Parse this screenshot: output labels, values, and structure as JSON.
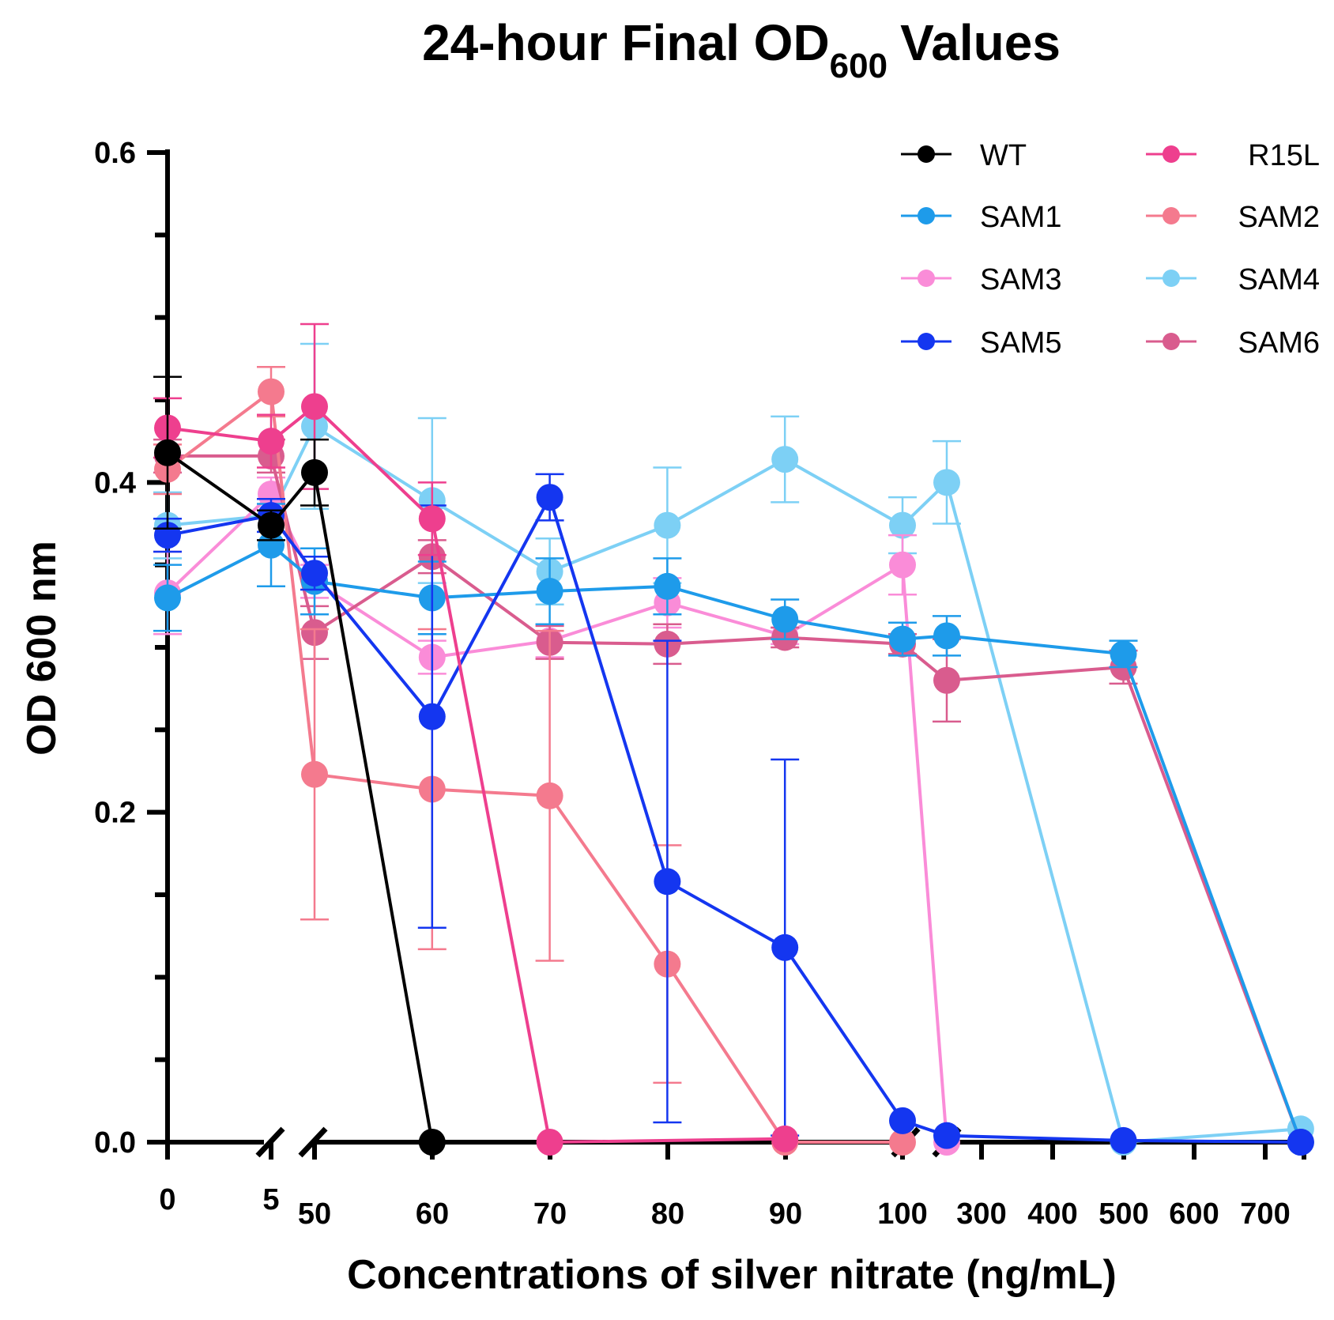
{
  "chart_data": {
    "type": "line",
    "title": "24-hour Final OD",
    "title_subscript": "600",
    "title_suffix": "Values",
    "xlabel": "Concentrations of silver nitrate (ng/mL)",
    "ylabel": "OD 600 nm",
    "ylim": [
      0,
      0.6
    ],
    "y_major_ticks": [
      "0.0",
      "0.2",
      "0.4",
      "0.6"
    ],
    "x_axis_segments": [
      {
        "name": "segment-1",
        "range": [
          0,
          5
        ],
        "ticks": [
          "0",
          "5"
        ]
      },
      {
        "name": "segment-2",
        "range": [
          50,
          100
        ],
        "ticks": [
          "50",
          "60",
          "70",
          "80",
          "90",
          "100"
        ]
      },
      {
        "name": "segment-3",
        "range": [
          200,
          800
        ],
        "ticks": [
          "300",
          "400",
          "500",
          "600",
          "700"
        ]
      }
    ],
    "legend_position": "top-right",
    "series": [
      {
        "name": "WT",
        "color": "#000000",
        "points": [
          {
            "x": 0,
            "y": 0.418,
            "err": 0.046
          },
          {
            "x": 5,
            "y": 0.374,
            "err": 0.009
          },
          {
            "x": 50,
            "y": 0.406,
            "err": 0.02
          },
          {
            "x": 60,
            "y": 0.0
          }
        ]
      },
      {
        "name": "R15L",
        "color": "#EE3F8E",
        "points": [
          {
            "x": 0,
            "y": 0.433,
            "err": 0.018
          },
          {
            "x": 5,
            "y": 0.425,
            "err": 0.016
          },
          {
            "x": 50,
            "y": 0.446,
            "err": 0.05
          },
          {
            "x": 60,
            "y": 0.378,
            "err": 0.022
          },
          {
            "x": 70,
            "y": 0.0
          },
          {
            "x": 90,
            "y": 0.002
          }
        ]
      },
      {
        "name": "SAM1",
        "color": "#1E9BEA",
        "points": [
          {
            "x": 0,
            "y": 0.33,
            "err": 0.02
          },
          {
            "x": 5,
            "y": 0.362,
            "err": 0.025
          },
          {
            "x": 50,
            "y": 0.34,
            "err": 0.02
          },
          {
            "x": 60,
            "y": 0.33,
            "err": 0.022
          },
          {
            "x": 70,
            "y": 0.334,
            "err": 0.02
          },
          {
            "x": 80,
            "y": 0.337,
            "err": 0.017
          },
          {
            "x": 90,
            "y": 0.317,
            "err": 0.012
          },
          {
            "x": 100,
            "y": 0.305,
            "err": 0.01
          },
          {
            "x": 250,
            "y": 0.307,
            "err": 0.012
          },
          {
            "x": 500,
            "y": 0.296,
            "err": 0.008
          },
          {
            "x": 750,
            "y": 0.0
          }
        ]
      },
      {
        "name": "SAM2",
        "color": "#F47A8E",
        "points": [
          {
            "x": 0,
            "y": 0.408,
            "err": 0.015
          },
          {
            "x": 5,
            "y": 0.455,
            "err": 0.015
          },
          {
            "x": 50,
            "y": 0.223,
            "err": 0.088
          },
          {
            "x": 60,
            "y": 0.214,
            "err": 0.097
          },
          {
            "x": 70,
            "y": 0.21,
            "err": 0.1
          },
          {
            "x": 80,
            "y": 0.108,
            "err": 0.072
          },
          {
            "x": 90,
            "y": 0.0
          },
          {
            "x": 100,
            "y": 0.0
          }
        ]
      },
      {
        "name": "SAM3",
        "color": "#FA8CD8",
        "points": [
          {
            "x": 0,
            "y": 0.333,
            "err": 0.025
          },
          {
            "x": 5,
            "y": 0.393,
            "err": 0.01
          },
          {
            "x": 50,
            "y": 0.34,
            "err": 0.01
          },
          {
            "x": 60,
            "y": 0.294,
            "err": 0.01
          },
          {
            "x": 70,
            "y": 0.304,
            "err": 0.01
          },
          {
            "x": 80,
            "y": 0.327,
            "err": 0.015
          },
          {
            "x": 90,
            "y": 0.307,
            "err": 0.005
          },
          {
            "x": 100,
            "y": 0.35,
            "err": 0.018
          },
          {
            "x": 250,
            "y": 0.0
          }
        ]
      },
      {
        "name": "SAM4",
        "color": "#7DD0F5",
        "points": [
          {
            "x": 0,
            "y": 0.374,
            "err": 0.02
          },
          {
            "x": 5,
            "y": 0.38,
            "err": 0.01
          },
          {
            "x": 50,
            "y": 0.434,
            "err": 0.05
          },
          {
            "x": 60,
            "y": 0.389,
            "err": 0.05
          },
          {
            "x": 70,
            "y": 0.346,
            "err": 0.02
          },
          {
            "x": 80,
            "y": 0.374,
            "err": 0.035
          },
          {
            "x": 90,
            "y": 0.414,
            "err": 0.026
          },
          {
            "x": 100,
            "y": 0.374,
            "err": 0.017
          },
          {
            "x": 250,
            "y": 0.4,
            "err": 0.025
          },
          {
            "x": 500,
            "y": 0.0
          },
          {
            "x": 750,
            "y": 0.008
          }
        ]
      },
      {
        "name": "SAM5",
        "color": "#1436F0",
        "points": [
          {
            "x": 0,
            "y": 0.368,
            "err": 0.01
          },
          {
            "x": 5,
            "y": 0.38,
            "err": 0.01
          },
          {
            "x": 50,
            "y": 0.345,
            "err": 0.01
          },
          {
            "x": 60,
            "y": 0.258,
            "err": 0.128
          },
          {
            "x": 70,
            "y": 0.391,
            "err": 0.014
          },
          {
            "x": 80,
            "y": 0.158,
            "err": 0.146
          },
          {
            "x": 90,
            "y": 0.118,
            "err": 0.114
          },
          {
            "x": 100,
            "y": 0.013
          },
          {
            "x": 250,
            "y": 0.004
          },
          {
            "x": 500,
            "y": 0.001
          },
          {
            "x": 750,
            "y": 0.0
          }
        ]
      },
      {
        "name": "SAM6",
        "color": "#D95C8E",
        "points": [
          {
            "x": 0,
            "y": 0.416,
            "err": 0.01
          },
          {
            "x": 5,
            "y": 0.416,
            "err": 0.01
          },
          {
            "x": 50,
            "y": 0.309,
            "err": 0.016
          },
          {
            "x": 60,
            "y": 0.355,
            "err": 0.01
          },
          {
            "x": 70,
            "y": 0.303,
            "err": 0.01
          },
          {
            "x": 80,
            "y": 0.302,
            "err": 0.012
          },
          {
            "x": 90,
            "y": 0.306,
            "err": 0.006
          },
          {
            "x": 100,
            "y": 0.302,
            "err": 0.006
          },
          {
            "x": 250,
            "y": 0.28,
            "err": 0.025
          },
          {
            "x": 500,
            "y": 0.288,
            "err": 0.01
          },
          {
            "x": 750,
            "y": 0.0
          }
        ]
      }
    ]
  }
}
